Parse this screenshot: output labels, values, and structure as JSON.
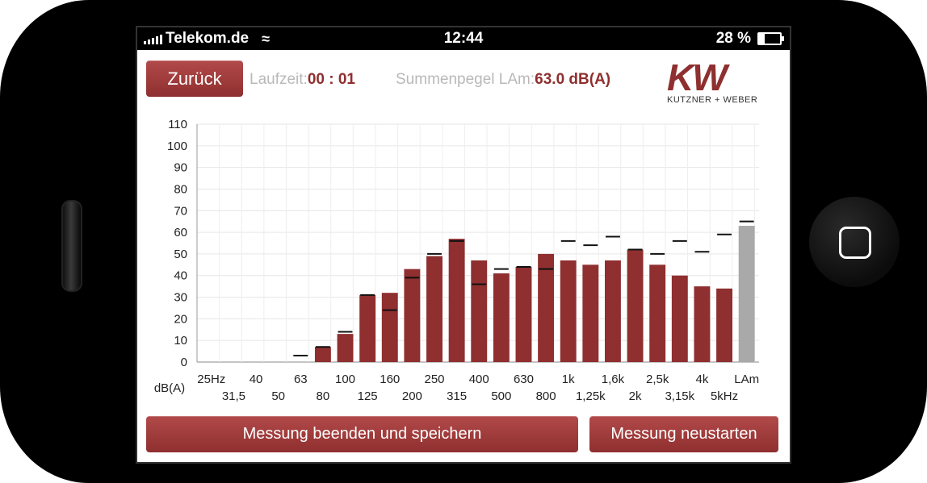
{
  "status_bar": {
    "carrier": "Telekom.de",
    "time": "12:44",
    "battery": "28 %"
  },
  "header": {
    "back_label": "Zurück",
    "runtime_label": "Laufzeit:",
    "runtime_value": "00 : 01",
    "sum_label": "Summenpegel LAm:",
    "sum_value": "63.0 dB(A)"
  },
  "logo": {
    "mark": "KW",
    "subtitle": "KUTZNER + WEBER"
  },
  "buttons": {
    "stop_save": "Messung beenden und speichern",
    "restart": "Messung neustarten"
  },
  "colors": {
    "bar": "#8f2f2f",
    "lam_bar": "#a9a9a9",
    "button": "#9e3a3a",
    "value_text": "#8f2f2f"
  },
  "chart_data": {
    "type": "bar",
    "ylabel": "dB(A)",
    "ylim": [
      0,
      110
    ],
    "yticks": [
      0,
      10,
      20,
      30,
      40,
      50,
      60,
      70,
      80,
      90,
      100,
      110
    ],
    "grid": true,
    "categories": [
      "25Hz",
      "31,5",
      "40",
      "50",
      "63",
      "80",
      "100",
      "125",
      "160",
      "200",
      "250",
      "315",
      "400",
      "500",
      "630",
      "800",
      "1k",
      "1,25k",
      "1,6k",
      "2k",
      "2,5k",
      "3,15k",
      "4k",
      "5kHz",
      "LAm"
    ],
    "values": [
      0,
      0,
      0,
      0,
      0,
      7,
      13,
      31,
      32,
      43,
      49,
      57,
      47,
      41,
      44,
      50,
      47,
      45,
      47,
      52,
      45,
      40,
      35,
      34,
      63
    ],
    "peak_markers": [
      null,
      null,
      null,
      null,
      3,
      7,
      14,
      31,
      24,
      39,
      50,
      56,
      36,
      43,
      44,
      43,
      56,
      54,
      58,
      52,
      50,
      56,
      51,
      59,
      65
    ],
    "x_tick_labels_row1": [
      "25Hz",
      "40",
      "63",
      "100",
      "160",
      "250",
      "400",
      "630",
      "1k",
      "1,6k",
      "2,5k",
      "4k",
      "LAm"
    ],
    "x_tick_labels_row2": [
      "31,5",
      "50",
      "80",
      "125",
      "200",
      "315",
      "500",
      "800",
      "1,25k",
      "2k",
      "3,15k",
      "5kHz"
    ]
  }
}
